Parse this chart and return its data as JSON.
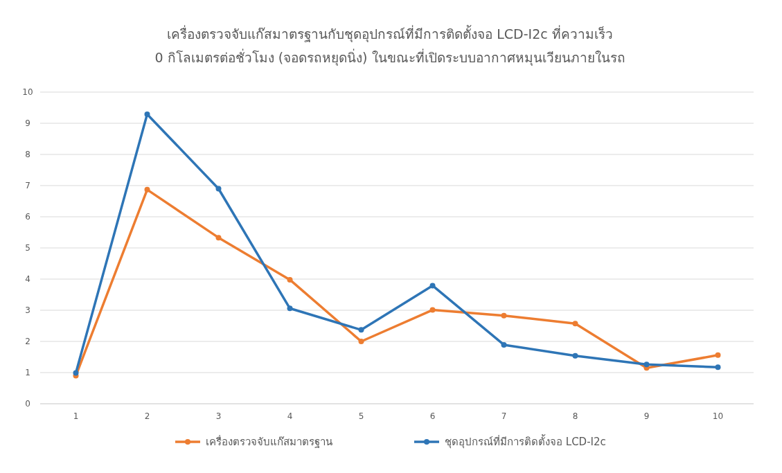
{
  "chart_data": {
    "type": "line",
    "title": "เครื่องตรวจจับแก๊สมาตรฐานกับชุดอุปกรณ์ที่มีการติดตั้งจอ LCD-I2c ที่ความเร็ว\n0 กิโลเมตรต่อชั่วโมง (จอดรถหยุดนิ่ง) ในขณะที่เปิดระบบอากาศหมุนเวียนภายในรถ",
    "categories": [
      "1",
      "2",
      "3",
      "4",
      "5",
      "6",
      "7",
      "8",
      "9",
      "10"
    ],
    "series": [
      {
        "name": "เครื่องตรวจจับแก๊สมาตรฐาน",
        "color": "#ed7d31",
        "values": [
          0.9,
          6.87,
          5.33,
          3.98,
          2.0,
          3.01,
          2.83,
          2.57,
          1.15,
          1.56
        ]
      },
      {
        "name": "ชุดอุปกรณ์ที่มีการติดตั้งจอ LCD-I2c",
        "color": "#2e75b6",
        "values": [
          0.99,
          9.29,
          6.9,
          3.06,
          2.37,
          3.79,
          1.89,
          1.54,
          1.26,
          1.17
        ]
      }
    ],
    "ylim": [
      0,
      10
    ],
    "yticks": [
      0,
      1,
      2,
      3,
      4,
      5,
      6,
      7,
      8,
      9,
      10
    ],
    "grid": "y",
    "legend": "bottom",
    "marker": "circle"
  }
}
